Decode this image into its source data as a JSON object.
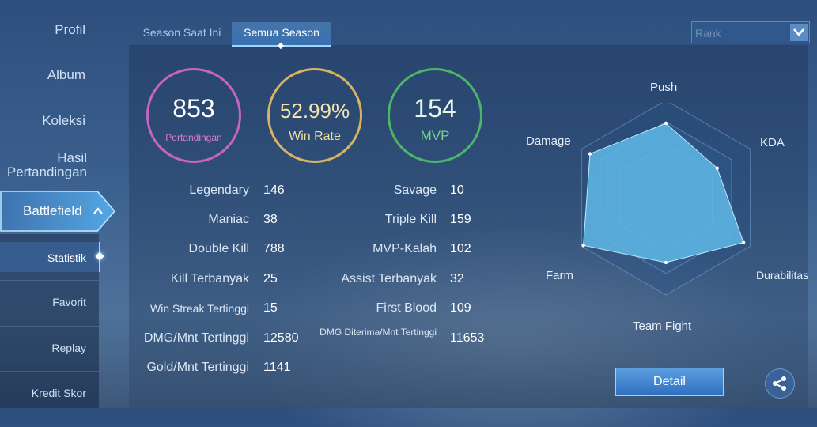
{
  "sidebar": {
    "profil": "Profil",
    "album": "Album",
    "koleksi": "Koleksi",
    "hasil_line1": "Hasil",
    "hasil_line2": "Pertandingan",
    "battlefield": "Battlefield",
    "sub": {
      "statistik": "Statistik",
      "favorit": "Favorit",
      "replay": "Replay",
      "kredit": "Kredit Skor"
    }
  },
  "tabs": {
    "current": "Season Saat Ini",
    "all": "Semua Season"
  },
  "dropdown": {
    "selected": "Rank"
  },
  "summary": {
    "matches_value": "853",
    "matches_label": "Pertandingan",
    "winrate_value": "52.99%",
    "winrate_label": "Win Rate",
    "mvp_value": "154",
    "mvp_label": "MVP"
  },
  "stats_left": [
    {
      "label": "Legendary",
      "value": "146"
    },
    {
      "label": "Maniac",
      "value": "38"
    },
    {
      "label": "Double Kill",
      "value": "788"
    },
    {
      "label": "Kill Terbanyak",
      "value": "25"
    },
    {
      "label": "Win Streak Tertinggi",
      "value": "15"
    },
    {
      "label": "DMG/Mnt Tertinggi",
      "value": "12580"
    },
    {
      "label": "Gold/Mnt Tertinggi",
      "value": "1141"
    }
  ],
  "stats_right": [
    {
      "label": "Savage",
      "value": "10"
    },
    {
      "label": "Triple Kill",
      "value": "159"
    },
    {
      "label": "MVP-Kalah",
      "value": "102"
    },
    {
      "label": "Assist Terbanyak",
      "value": "32"
    },
    {
      "label": "First Blood",
      "value": "109"
    },
    {
      "label": "DMG Diterima/Mnt Tertinggi",
      "value": "11653"
    }
  ],
  "radar": {
    "labels": {
      "push": "Push",
      "kda": "KDA",
      "durabilitas": "Durabilitas",
      "team_fight": "Team Fight",
      "farm": "Farm",
      "damage": "Damage"
    },
    "values": {
      "push": 0.78,
      "kda": 0.62,
      "durabilitas": 0.94,
      "team_fight": 0.68,
      "farm": 1.0,
      "damage": 0.92
    },
    "fill_color": "#5fb9e6"
  },
  "buttons": {
    "detail": "Detail"
  },
  "icons": {
    "dropdown": "chevron-down-icon",
    "battlefield": "chevron-up-icon",
    "share": "share-icon"
  }
}
